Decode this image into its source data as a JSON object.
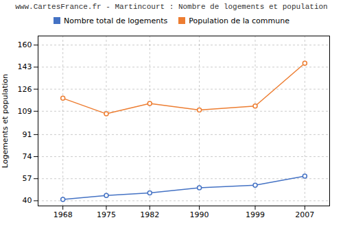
{
  "chart_data": {
    "type": "line",
    "title": "www.CartesFrance.fr - Martincourt : Nombre de logements et population",
    "ylabel": "Logements et population",
    "x": [
      1968,
      1975,
      1982,
      1990,
      1999,
      2007
    ],
    "series": [
      {
        "name": "Nombre total de logements",
        "color": "#4472c4",
        "values": [
          41,
          44,
          46,
          50,
          52,
          59
        ]
      },
      {
        "name": "Population de la commune",
        "color": "#ed7d31",
        "values": [
          119,
          107,
          115,
          110,
          113,
          146
        ]
      }
    ],
    "xlim": [
      1964,
      2011
    ],
    "xticks": [
      1968,
      1975,
      1982,
      1990,
      1999,
      2007
    ],
    "ylim": [
      36,
      167
    ],
    "yticks": [
      40,
      57,
      74,
      91,
      109,
      126,
      143,
      160
    ],
    "grid": true,
    "legend": "top",
    "marker": "o"
  }
}
